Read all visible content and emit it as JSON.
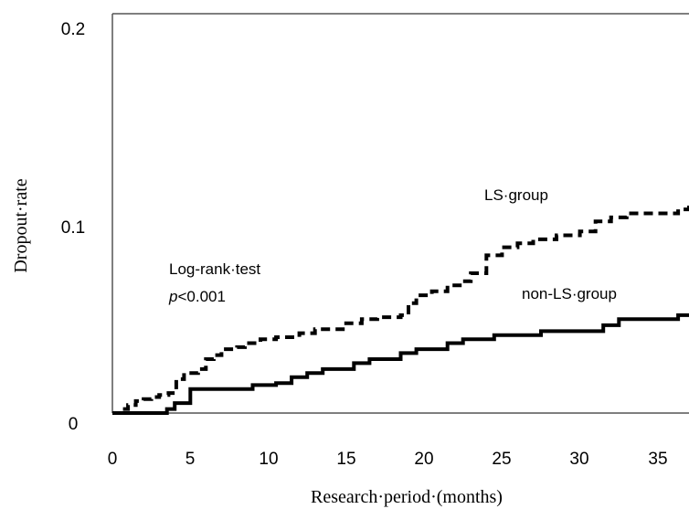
{
  "chart_data": {
    "type": "line",
    "xlabel": "Research·period·(months)",
    "ylabel": "Dropout·rate",
    "xlim": [
      0,
      37
    ],
    "ylim": [
      0,
      0.2
    ],
    "x_ticks": [
      "0",
      "5",
      "10",
      "15",
      "20",
      "25",
      "30",
      "35"
    ],
    "y_ticks": [
      "0",
      "0.1",
      "0.2"
    ],
    "grid": false,
    "step": true,
    "annotations": {
      "test_name": "Log-rank·test",
      "p_prefix": "p",
      "p_value_text": "<0.001"
    },
    "series": [
      {
        "name": "LS·group",
        "style": "dashed",
        "color": "#000000",
        "points": [
          [
            0,
            0
          ],
          [
            0.5,
            0.002
          ],
          [
            1,
            0.004
          ],
          [
            1.5,
            0.006
          ],
          [
            2,
            0.007
          ],
          [
            2.5,
            0.008
          ],
          [
            3,
            0.009
          ],
          [
            3.6,
            0.01
          ],
          [
            4.1,
            0.017
          ],
          [
            4.6,
            0.02
          ],
          [
            5.5,
            0.022
          ],
          [
            6,
            0.027
          ],
          [
            6.5,
            0.029
          ],
          [
            7,
            0.032
          ],
          [
            8,
            0.033
          ],
          [
            8.5,
            0.035
          ],
          [
            9.5,
            0.037
          ],
          [
            10.5,
            0.038
          ],
          [
            12,
            0.04
          ],
          [
            13,
            0.042
          ],
          [
            15,
            0.045
          ],
          [
            16,
            0.047
          ],
          [
            17,
            0.048
          ],
          [
            18.5,
            0.049
          ],
          [
            19,
            0.055
          ],
          [
            19.5,
            0.059
          ],
          [
            20.5,
            0.061
          ],
          [
            21.5,
            0.064
          ],
          [
            22.5,
            0.066
          ],
          [
            23,
            0.07
          ],
          [
            24,
            0.079
          ],
          [
            25,
            0.083
          ],
          [
            26,
            0.085
          ],
          [
            27,
            0.087
          ],
          [
            28.5,
            0.089
          ],
          [
            30,
            0.091
          ],
          [
            31,
            0.096
          ],
          [
            32,
            0.098
          ],
          [
            33,
            0.1
          ],
          [
            36.3,
            0.102
          ],
          [
            37,
            0.105
          ]
        ]
      },
      {
        "name": "non-LS·group",
        "style": "solid",
        "color": "#000000",
        "points": [
          [
            0,
            0
          ],
          [
            3,
            0
          ],
          [
            3.5,
            0.002
          ],
          [
            4,
            0.005
          ],
          [
            5,
            0.012
          ],
          [
            7.5,
            0.012
          ],
          [
            9,
            0.014
          ],
          [
            10.5,
            0.015
          ],
          [
            11.5,
            0.018
          ],
          [
            12.5,
            0.02
          ],
          [
            13.5,
            0.022
          ],
          [
            15,
            0.022
          ],
          [
            15.5,
            0.025
          ],
          [
            16.5,
            0.027
          ],
          [
            18.5,
            0.03
          ],
          [
            19.5,
            0.032
          ],
          [
            21.5,
            0.035
          ],
          [
            22.5,
            0.037
          ],
          [
            24.5,
            0.039
          ],
          [
            27.5,
            0.041
          ],
          [
            31.5,
            0.044
          ],
          [
            32.5,
            0.047
          ],
          [
            36.3,
            0.049
          ],
          [
            37,
            0.049
          ]
        ]
      }
    ]
  }
}
